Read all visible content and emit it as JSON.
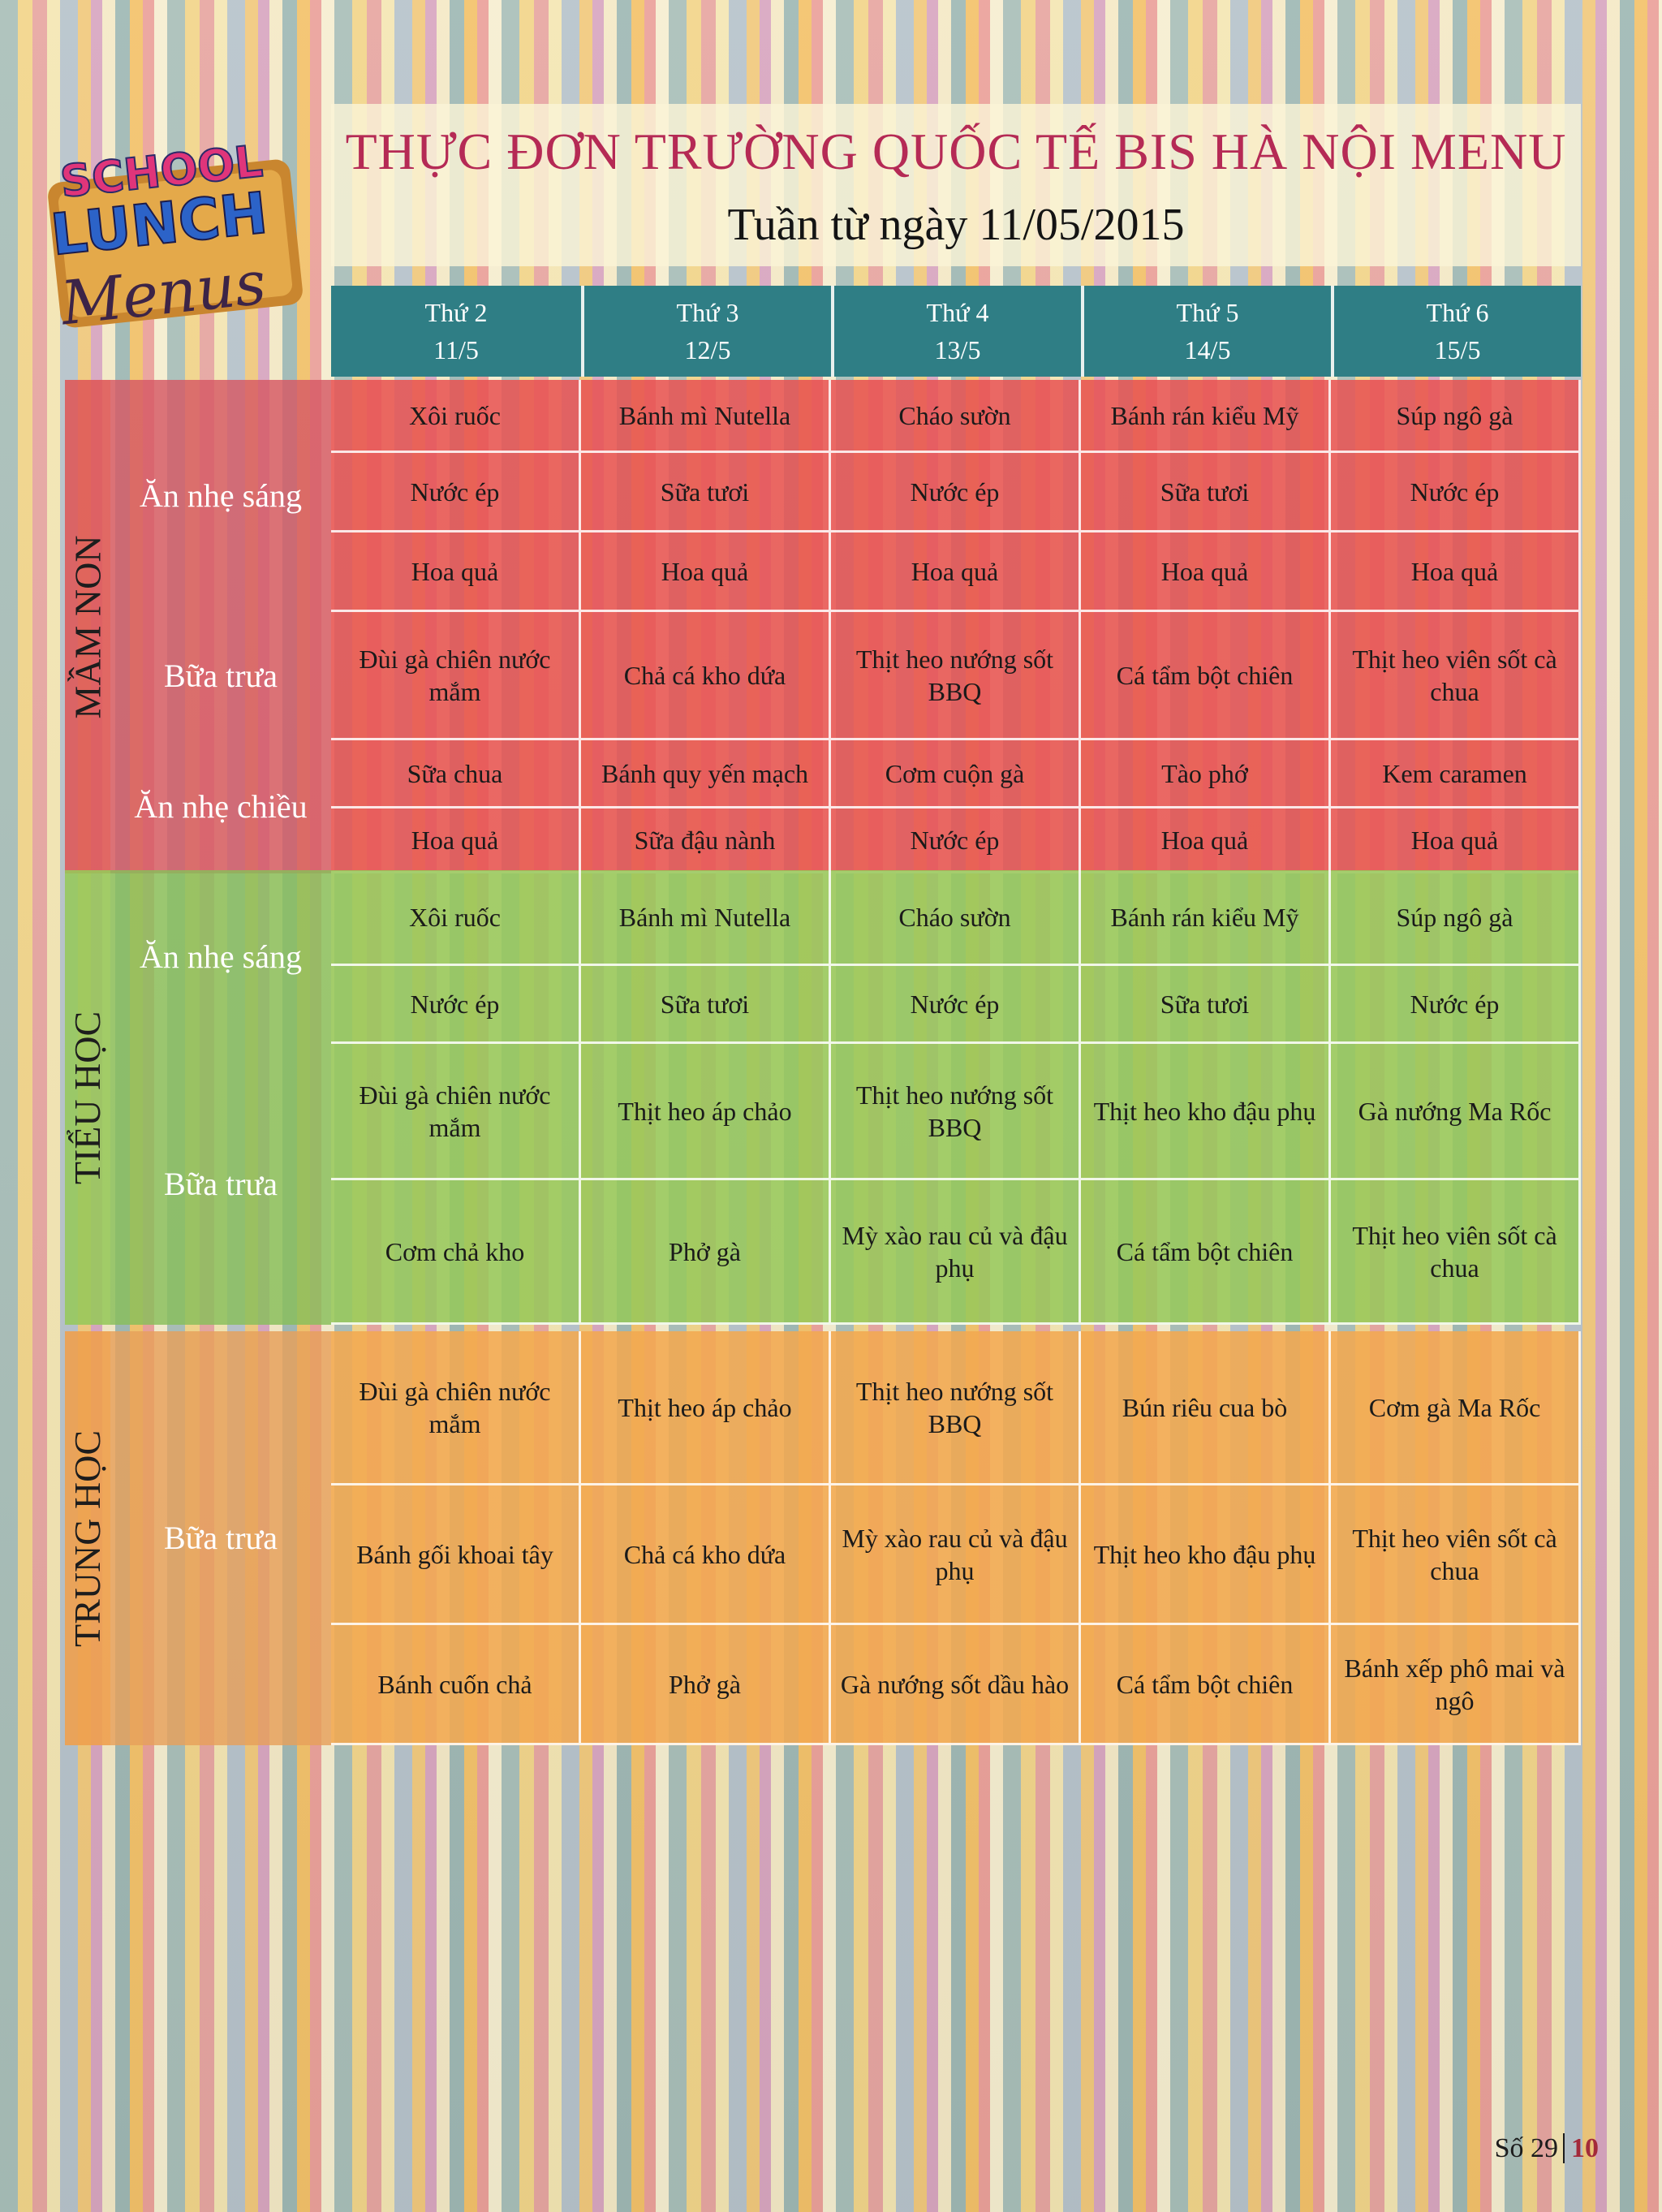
{
  "header": {
    "title": "THỰC ĐƠN TRƯỜNG QUỐC TẾ BIS HÀ NỘI MENU",
    "subtitle": "Tuần từ ngày 11/05/2015"
  },
  "logo": {
    "line1": "SCHOOL",
    "line2": "LUNCH",
    "line3": "Menus"
  },
  "days": [
    {
      "name": "Thứ 2",
      "date": "11/5"
    },
    {
      "name": "Thứ 3",
      "date": "12/5"
    },
    {
      "name": "Thứ 4",
      "date": "13/5"
    },
    {
      "name": "Thứ 5",
      "date": "14/5"
    },
    {
      "name": "Thứ 6",
      "date": "15/5"
    }
  ],
  "sections": [
    {
      "name": "MẦM NON",
      "meals": [
        {
          "label": "Ăn nhẹ sáng",
          "rows": [
            [
              "Xôi ruốc",
              "Bánh mì Nutella",
              "Cháo sườn",
              "Bánh rán kiểu Mỹ",
              "Súp ngô gà"
            ],
            [
              "Nước ép",
              "Sữa tươi",
              "Nước ép",
              "Sữa tươi",
              "Nước ép"
            ],
            [
              "Hoa quả",
              "Hoa quả",
              "Hoa quả",
              "Hoa quả",
              "Hoa quả"
            ]
          ]
        },
        {
          "label": "Bữa trưa",
          "rows": [
            [
              "Đùi gà chiên nước mắm",
              "Chả cá kho dứa",
              "Thịt heo nướng sốt BBQ",
              "Cá tẩm bột chiên",
              "Thịt heo viên sốt cà chua"
            ]
          ]
        },
        {
          "label": "Ăn nhẹ chiều",
          "rows": [
            [
              "Sữa chua",
              "Bánh quy yến mạch",
              "Cơm cuộn gà",
              "Tào phớ",
              "Kem caramen"
            ],
            [
              "Hoa quả",
              "Sữa đậu nành",
              "Nước ép",
              "Hoa quả",
              "Hoa quả"
            ]
          ]
        }
      ]
    },
    {
      "name": "TIỂU HỌC",
      "meals": [
        {
          "label": "Ăn nhẹ sáng",
          "rows": [
            [
              "Xôi ruốc",
              "Bánh mì Nutella",
              "Cháo sườn",
              "Bánh rán kiểu Mỹ",
              "Súp ngô gà"
            ],
            [
              "Nước ép",
              "Sữa tươi",
              "Nước ép",
              "Sữa tươi",
              "Nước ép"
            ]
          ]
        },
        {
          "label": "Bữa trưa",
          "rows": [
            [
              "Đùi gà chiên nước mắm",
              "Thịt heo áp chảo",
              "Thịt heo nướng sốt BBQ",
              "Thịt heo kho đậu phụ",
              "Gà nướng Ma Rốc"
            ],
            [
              "Cơm chả kho",
              "Phở gà",
              "Mỳ xào rau củ và đậu phụ",
              "Cá tẩm bột chiên",
              "Thịt heo viên sốt cà chua"
            ]
          ]
        }
      ]
    },
    {
      "name": "TRUNG HỌC",
      "meals": [
        {
          "label": "Bữa trưa",
          "rows": [
            [
              "Đùi gà chiên nước mắm",
              "Thịt heo áp chảo",
              "Thịt heo nướng sốt BBQ",
              "Bún riêu cua bò",
              "Cơm gà Ma Rốc"
            ],
            [
              "Bánh gối khoai tây",
              "Chả cá kho dứa",
              "Mỳ xào rau củ và đậu phụ",
              "Thịt heo kho đậu phụ",
              "Thịt heo viên sốt cà chua"
            ],
            [
              "Bánh cuốn chả",
              "Phở gà",
              "Gà nướng sốt dầu hào",
              "Cá tẩm bột chiên",
              "Bánh xếp phô mai và ngô"
            ]
          ]
        }
      ]
    }
  ],
  "footer": {
    "issue": "Số 29",
    "page": "10"
  }
}
